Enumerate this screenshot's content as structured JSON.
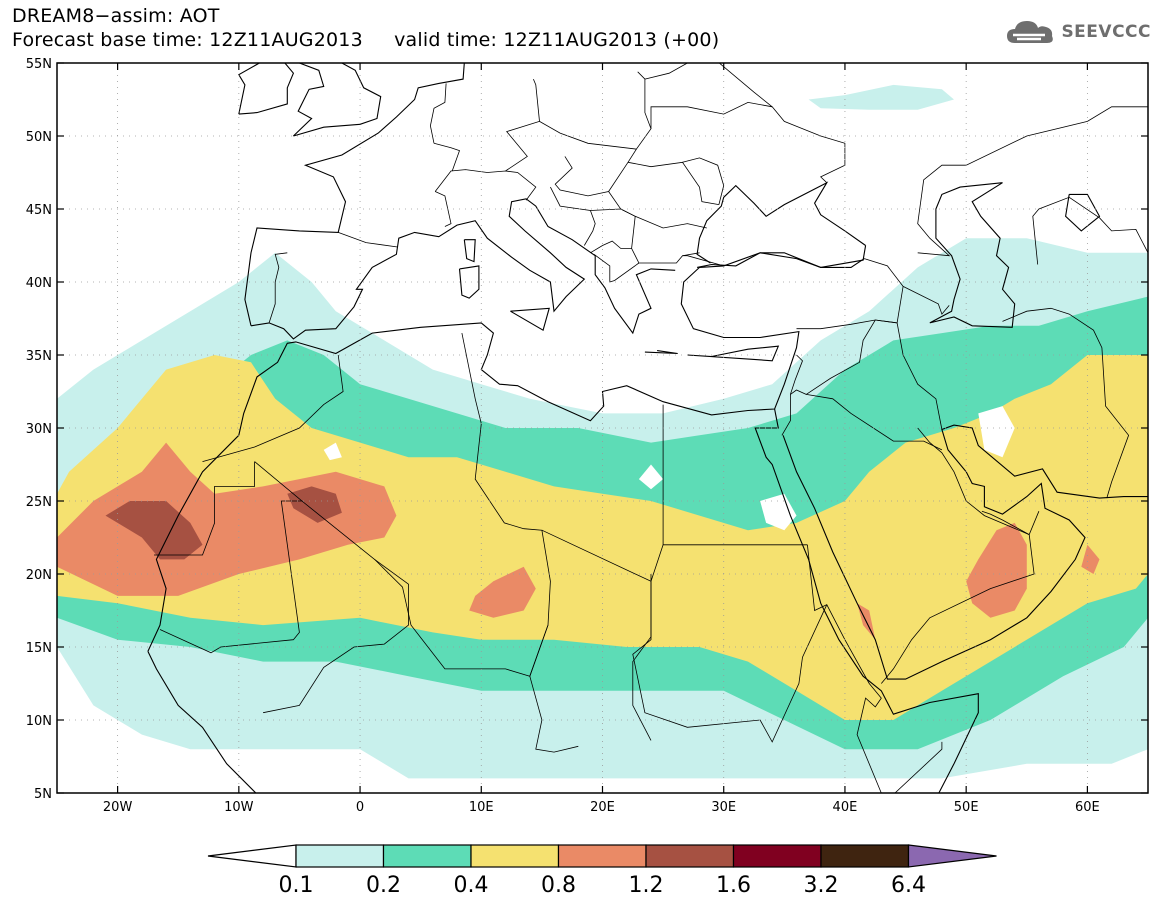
{
  "header": {
    "line1": "DREAM8−assim: AOT",
    "line2": "Forecast base time: 12Z11AUG2013     valid time: 12Z11AUG2013 (+00)"
  },
  "logo": {
    "text": "SEEVCCC",
    "icon": "cloud-logo-icon"
  },
  "map": {
    "projection": "lat-lon",
    "lon_range": [
      -25,
      65
    ],
    "lat_range": [
      5,
      55
    ],
    "grid": "dotted",
    "lat_ticks": [
      {
        "v": 55,
        "label": "55N"
      },
      {
        "v": 50,
        "label": "50N"
      },
      {
        "v": 45,
        "label": "45N"
      },
      {
        "v": 40,
        "label": "40N"
      },
      {
        "v": 35,
        "label": "35N"
      },
      {
        "v": 30,
        "label": "30N"
      },
      {
        "v": 25,
        "label": "25N"
      },
      {
        "v": 20,
        "label": "20N"
      },
      {
        "v": 15,
        "label": "15N"
      },
      {
        "v": 10,
        "label": "10N"
      },
      {
        "v": 5,
        "label": "5N"
      }
    ],
    "lon_ticks": [
      {
        "v": -20,
        "label": "20W"
      },
      {
        "v": -10,
        "label": "10W"
      },
      {
        "v": 0,
        "label": "0"
      },
      {
        "v": 10,
        "label": "10E"
      },
      {
        "v": 20,
        "label": "20E"
      },
      {
        "v": 30,
        "label": "30E"
      },
      {
        "v": 40,
        "label": "40E"
      },
      {
        "v": 50,
        "label": "50E"
      },
      {
        "v": 60,
        "label": "60E"
      }
    ],
    "aot_fields": [
      {
        "level": 0.1,
        "color": "#c8f0ec",
        "poly": [
          [
            -25,
            15
          ],
          [
            -22,
            11
          ],
          [
            -18,
            9
          ],
          [
            -14,
            8
          ],
          [
            -10,
            8
          ],
          [
            -4,
            8
          ],
          [
            0,
            8
          ],
          [
            4,
            6
          ],
          [
            10,
            6
          ],
          [
            18,
            6
          ],
          [
            25,
            6
          ],
          [
            30,
            6
          ],
          [
            36,
            6
          ],
          [
            42,
            6
          ],
          [
            48,
            6
          ],
          [
            55,
            7
          ],
          [
            62,
            7
          ],
          [
            65,
            8
          ],
          [
            65,
            42
          ],
          [
            60,
            42
          ],
          [
            55,
            43
          ],
          [
            50,
            43
          ],
          [
            46,
            41
          ],
          [
            42,
            38
          ],
          [
            38,
            36
          ],
          [
            34,
            33
          ],
          [
            30,
            32
          ],
          [
            25,
            31
          ],
          [
            20,
            31
          ],
          [
            14,
            32
          ],
          [
            10,
            33
          ],
          [
            6,
            34
          ],
          [
            2,
            36
          ],
          [
            -2,
            38
          ],
          [
            -4,
            40
          ],
          [
            -7,
            42
          ],
          [
            -10,
            40
          ],
          [
            -14,
            38
          ],
          [
            -18,
            36
          ],
          [
            -22,
            34
          ],
          [
            -25,
            32
          ]
        ]
      },
      {
        "level": 0.1,
        "color": "#c8f0ec",
        "poly": [
          [
            37,
            52.5
          ],
          [
            40,
            52.8
          ],
          [
            44,
            53.5
          ],
          [
            48,
            53.2
          ],
          [
            49,
            52.5
          ],
          [
            46,
            51.8
          ],
          [
            42,
            51.8
          ],
          [
            38,
            51.9
          ]
        ]
      },
      {
        "level": 0.2,
        "color": "#5ddcb6",
        "poly": [
          [
            -25,
            17
          ],
          [
            -20,
            15.5
          ],
          [
            -14,
            15
          ],
          [
            -8,
            14
          ],
          [
            -2,
            14
          ],
          [
            4,
            13
          ],
          [
            10,
            12
          ],
          [
            18,
            12
          ],
          [
            24,
            12
          ],
          [
            30,
            12
          ],
          [
            35,
            10
          ],
          [
            40,
            8
          ],
          [
            46,
            8
          ],
          [
            52,
            10
          ],
          [
            58,
            13
          ],
          [
            63,
            15
          ],
          [
            65,
            17
          ],
          [
            65,
            39
          ],
          [
            60,
            38
          ],
          [
            56,
            37
          ],
          [
            52,
            37
          ],
          [
            48,
            36.5
          ],
          [
            44,
            36
          ],
          [
            40,
            34
          ],
          [
            36,
            31
          ],
          [
            32,
            30
          ],
          [
            28,
            29.5
          ],
          [
            24,
            29
          ],
          [
            18,
            30
          ],
          [
            12,
            30
          ],
          [
            8,
            31
          ],
          [
            4,
            32
          ],
          [
            0,
            33
          ],
          [
            -3,
            35
          ],
          [
            -6,
            36
          ],
          [
            -9,
            35
          ],
          [
            -12,
            33
          ],
          [
            -16,
            31
          ],
          [
            -22,
            27
          ],
          [
            -25,
            25
          ]
        ]
      },
      {
        "level": 0.4,
        "color": "#f5e170",
        "poly": [
          [
            -25,
            18.5
          ],
          [
            -20,
            18
          ],
          [
            -14,
            17
          ],
          [
            -8,
            16.5
          ],
          [
            0,
            17
          ],
          [
            6,
            16
          ],
          [
            10,
            15.5
          ],
          [
            16,
            15.5
          ],
          [
            22,
            15
          ],
          [
            28,
            15
          ],
          [
            32,
            14
          ],
          [
            36,
            12
          ],
          [
            40,
            10
          ],
          [
            44,
            10
          ],
          [
            48,
            12
          ],
          [
            52,
            14
          ],
          [
            56,
            16
          ],
          [
            60,
            18
          ],
          [
            64,
            19
          ],
          [
            65,
            20
          ],
          [
            65,
            35
          ],
          [
            60,
            35
          ],
          [
            57,
            33
          ],
          [
            54,
            32
          ],
          [
            52,
            31
          ],
          [
            49,
            30
          ],
          [
            45,
            29
          ],
          [
            42,
            27
          ],
          [
            40,
            25
          ],
          [
            36,
            23.5
          ],
          [
            32,
            23
          ],
          [
            28,
            24
          ],
          [
            24,
            25
          ],
          [
            20,
            25.5
          ],
          [
            16,
            26
          ],
          [
            12,
            27
          ],
          [
            8,
            28
          ],
          [
            4,
            28
          ],
          [
            0,
            29
          ],
          [
            -4,
            30
          ],
          [
            -7,
            32
          ],
          [
            -9,
            34.5
          ],
          [
            -12,
            35
          ],
          [
            -16,
            34
          ],
          [
            -20,
            30
          ],
          [
            -24,
            27
          ],
          [
            -25,
            25.5
          ]
        ]
      },
      {
        "level": 0.8,
        "color": "#ea8a66",
        "poly": [
          [
            -25,
            22.5
          ],
          [
            -22,
            25
          ],
          [
            -18,
            27
          ],
          [
            -16,
            29
          ],
          [
            -14,
            27
          ],
          [
            -12,
            25.5
          ],
          [
            -8,
            26
          ],
          [
            -5,
            26.5
          ],
          [
            -2,
            27
          ],
          [
            2,
            26
          ],
          [
            3,
            24
          ],
          [
            2,
            22.5
          ],
          [
            -1,
            22
          ],
          [
            -5,
            21
          ],
          [
            -10,
            20
          ],
          [
            -15,
            18.5
          ],
          [
            -20,
            18.5
          ],
          [
            -25,
            20.5
          ]
        ]
      },
      {
        "level": 0.8,
        "color": "#ea8a66",
        "poly": [
          [
            9,
            17.5
          ],
          [
            11,
            17
          ],
          [
            13.5,
            17.5
          ],
          [
            14.5,
            19
          ],
          [
            13.5,
            20.5
          ],
          [
            11,
            19.5
          ],
          [
            9.5,
            18.5
          ]
        ]
      },
      {
        "level": 0.8,
        "color": "#ea8a66",
        "poly": [
          [
            50,
            19.5
          ],
          [
            51,
            21
          ],
          [
            52.5,
            23
          ],
          [
            54,
            23.5
          ],
          [
            55,
            22
          ],
          [
            55,
            19
          ],
          [
            54,
            17.5
          ],
          [
            52,
            17
          ],
          [
            50.5,
            18
          ]
        ]
      },
      {
        "level": 0.8,
        "color": "#ea8a66",
        "poly": [
          [
            60,
            22
          ],
          [
            61,
            21
          ],
          [
            60.5,
            20
          ],
          [
            59.5,
            20.5
          ]
        ]
      },
      {
        "level": 0.8,
        "color": "#ea8a66",
        "poly": [
          [
            41,
            18
          ],
          [
            41.5,
            16.5
          ],
          [
            42.5,
            15.5
          ],
          [
            42,
            17.5
          ]
        ]
      },
      {
        "level": 1.2,
        "color": "#a65142",
        "poly": [
          [
            -21,
            24
          ],
          [
            -19,
            25
          ],
          [
            -16,
            25
          ],
          [
            -14,
            23.5
          ],
          [
            -13,
            22
          ],
          [
            -14.5,
            21
          ],
          [
            -16.5,
            21
          ],
          [
            -18,
            22.5
          ]
        ]
      },
      {
        "level": 1.2,
        "color": "#a65142",
        "poly": [
          [
            -6,
            25.5
          ],
          [
            -4,
            26
          ],
          [
            -2,
            25.5
          ],
          [
            -1.5,
            24.2
          ],
          [
            -3.5,
            23.5
          ],
          [
            -5.5,
            24.5
          ]
        ]
      }
    ],
    "blank_pockets": [
      {
        "poly": [
          [
            -3,
            28.5
          ],
          [
            -2,
            29
          ],
          [
            -1.5,
            28
          ],
          [
            -2.5,
            27.8
          ]
        ]
      },
      {
        "poly": [
          [
            23,
            26.5
          ],
          [
            24,
            27.5
          ],
          [
            25,
            26.5
          ],
          [
            24,
            25.8
          ]
        ]
      },
      {
        "poly": [
          [
            33,
            25
          ],
          [
            35,
            25.5
          ],
          [
            36,
            24
          ],
          [
            35,
            23
          ],
          [
            33.5,
            23.5
          ]
        ]
      },
      {
        "poly": [
          [
            51,
            31
          ],
          [
            53,
            31.5
          ],
          [
            54,
            30
          ],
          [
            53,
            28
          ],
          [
            51.5,
            28.5
          ]
        ]
      }
    ]
  },
  "colorbar": {
    "colors": [
      "#ffffff",
      "#c8f0ec",
      "#5ddcb6",
      "#f5e170",
      "#ea8a66",
      "#a65142",
      "#800020",
      "#3f2410",
      "#8b68b0"
    ],
    "labels": [
      "0.1",
      "0.2",
      "0.4",
      "0.8",
      "1.2",
      "1.6",
      "3.2",
      "6.4"
    ]
  }
}
